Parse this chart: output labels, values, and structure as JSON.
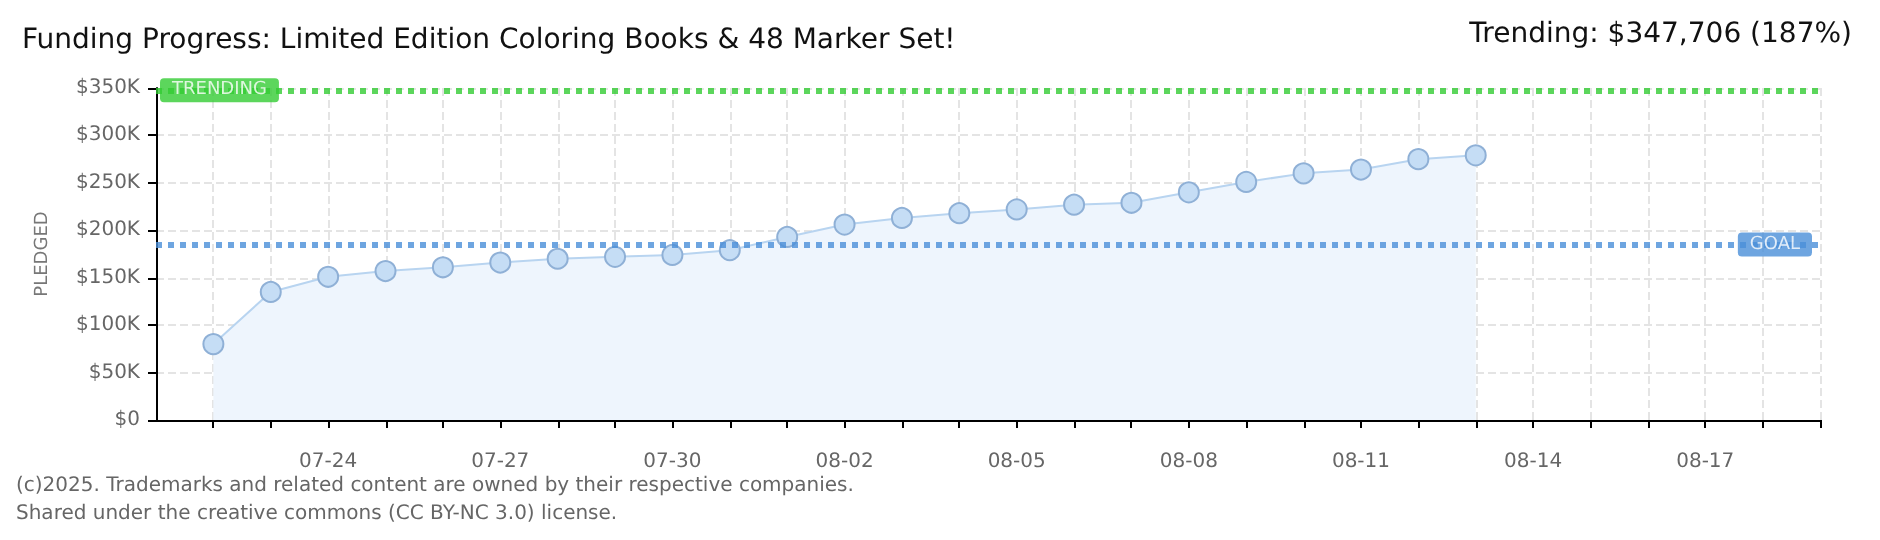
{
  "chart_data": {
    "type": "area",
    "title": "Funding Progress: Limited Edition Coloring Books & 48 Marker Set!",
    "ylabel": "PLEDGED",
    "annotations": [
      "Trending: $347,706 (187%)",
      "(c)2025. Trademarks and related content are owned by their respective companies.",
      "Shared under the creative commons (CC BY-NC 3.0) license."
    ],
    "x": [
      "--07-22",
      "--07-23",
      "--07-24",
      "--07-25",
      "--07-26",
      "--07-27",
      "--07-28",
      "--07-29",
      "--07-30",
      "--07-31",
      "--08-01",
      "--08-02",
      "--08-03",
      "--08-04",
      "--08-05",
      "--08-06",
      "--08-07",
      "--08-08",
      "--08-09",
      "--08-10",
      "--08-11",
      "--08-12",
      "--08-13"
    ],
    "series": [
      {
        "color": "#c5ddf5",
        "values": [
          80000,
          135000,
          151000,
          157000,
          161000,
          166000,
          170000,
          172000,
          174000,
          179000,
          193000,
          206000,
          213000,
          218000,
          222000,
          227000,
          229000,
          240000,
          251000,
          260000,
          264000,
          275000,
          279000
        ]
      }
    ],
    "xlim": [
      "--07-21",
      "--08-19"
    ],
    "xticks": [
      {
        "value": "--07-22",
        "label": null
      },
      {
        "value": "--07-23",
        "label": null
      },
      {
        "value": "--07-24",
        "label": "07-24"
      },
      {
        "value": "--07-25",
        "label": null
      },
      {
        "value": "--07-26",
        "label": null
      },
      {
        "value": "--07-27",
        "label": "07-27"
      },
      {
        "value": "--07-28",
        "label": null
      },
      {
        "value": "--07-29",
        "label": null
      },
      {
        "value": "--07-30",
        "label": "07-30"
      },
      {
        "value": "--07-31",
        "label": null
      },
      {
        "value": "--08-01",
        "label": null
      },
      {
        "value": "--08-02",
        "label": "08-02"
      },
      {
        "value": "--08-03",
        "label": null
      },
      {
        "value": "--08-04",
        "label": null
      },
      {
        "value": "--08-05",
        "label": "08-05"
      },
      {
        "value": "--08-06",
        "label": null
      },
      {
        "value": "--08-07",
        "label": null
      },
      {
        "value": "--08-08",
        "label": "08-08"
      },
      {
        "value": "--08-09",
        "label": null
      },
      {
        "value": "--08-10",
        "label": null
      },
      {
        "value": "--08-11",
        "label": "08-11"
      },
      {
        "value": "--08-12",
        "label": null
      },
      {
        "value": "--08-13",
        "label": null
      },
      {
        "value": "--08-14",
        "label": "08-14"
      },
      {
        "value": "--08-15",
        "label": null
      },
      {
        "value": "--08-16",
        "label": null
      },
      {
        "value": "--08-17",
        "label": "08-17"
      },
      {
        "value": "--08-18",
        "label": null
      },
      {
        "value": "--08-19",
        "label": null
      }
    ],
    "ylim": [
      0,
      350000
    ],
    "yticks": [
      {
        "value": 0,
        "label": "$0"
      },
      {
        "value": 50000,
        "label": "$50K"
      },
      {
        "value": 100000,
        "label": "$100K"
      },
      {
        "value": 150000,
        "label": "$150K"
      },
      {
        "value": 200000,
        "label": "$200K"
      },
      {
        "value": 250000,
        "label": "$250K"
      },
      {
        "value": 300000,
        "label": "$300K"
      },
      {
        "value": 350000,
        "label": "$350K"
      }
    ],
    "ref_lines": [
      {
        "axis": "y",
        "value": 347706,
        "label": "TRENDING",
        "color": "#33cc33",
        "line_style": "dotted"
      },
      {
        "axis": "y",
        "value": 185000,
        "label": "GOAL",
        "color": "#4a8fd8",
        "line_style": "dotted"
      }
    ],
    "grid": true,
    "marker": "circle",
    "line_style": "solid"
  }
}
